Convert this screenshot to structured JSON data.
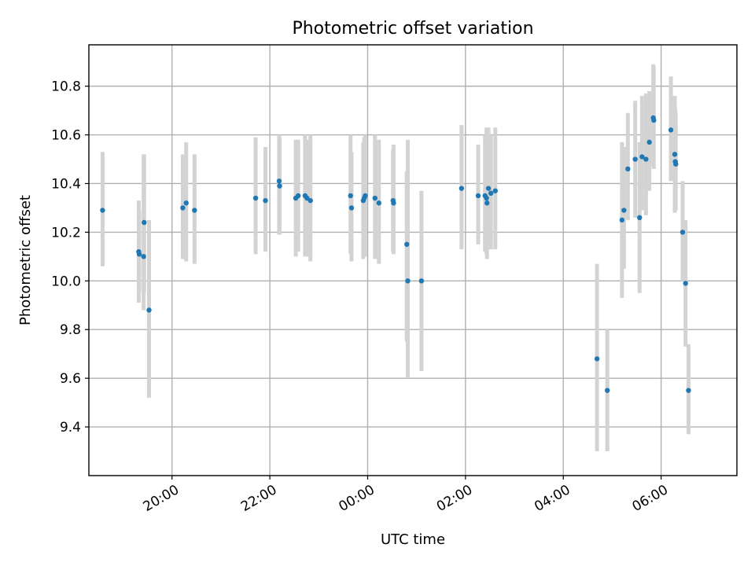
{
  "chart_data": {
    "type": "scatter",
    "title": "Photometric offset variation",
    "xlabel": "UTC time",
    "ylabel": "Photometric offset",
    "x_unit": "hours",
    "xlim": [
      18.3,
      31.55
    ],
    "ylim": [
      9.2,
      10.97
    ],
    "x_ticks": [
      {
        "value": 20,
        "label": "20:00"
      },
      {
        "value": 22,
        "label": "22:00"
      },
      {
        "value": 24,
        "label": "00:00"
      },
      {
        "value": 26,
        "label": "02:00"
      },
      {
        "value": 28,
        "label": "04:00"
      },
      {
        "value": 30,
        "label": "06:00"
      }
    ],
    "y_ticks": [
      9.4,
      9.6,
      9.8,
      10.0,
      10.2,
      10.4,
      10.6,
      10.8
    ],
    "grid": true,
    "marker_color": "#1f77b4",
    "errorbar_color": "#d3d3d3",
    "series": [
      {
        "x": [
          18.58,
          19.32,
          19.33,
          19.42,
          19.43,
          19.53,
          20.22,
          20.29,
          20.46,
          21.71,
          21.91,
          22.19,
          22.2,
          22.53,
          22.58,
          22.72,
          22.76,
          22.83,
          23.65,
          23.67,
          23.91,
          23.93,
          23.95,
          24.15,
          24.23,
          24.52,
          24.53,
          24.8,
          24.82,
          25.1,
          25.92,
          26.26,
          26.4,
          26.43,
          26.44,
          26.47,
          26.52,
          26.61,
          28.69,
          28.9,
          29.2,
          29.24,
          29.32,
          29.47,
          29.56,
          29.61,
          29.69,
          29.76,
          29.84,
          29.85,
          30.2,
          30.28,
          30.29,
          30.3,
          30.44,
          30.5,
          30.56
        ],
        "y": [
          10.29,
          10.12,
          10.11,
          10.1,
          10.24,
          9.88,
          10.3,
          10.32,
          10.29,
          10.34,
          10.33,
          10.41,
          10.39,
          10.34,
          10.35,
          10.35,
          10.34,
          10.33,
          10.35,
          10.3,
          10.33,
          10.34,
          10.35,
          10.34,
          10.32,
          10.33,
          10.32,
          10.15,
          10.0,
          10.0,
          10.38,
          10.35,
          10.35,
          10.34,
          10.32,
          10.38,
          10.36,
          10.37,
          9.68,
          9.55,
          10.25,
          10.29,
          10.46,
          10.5,
          10.26,
          10.51,
          10.5,
          10.57,
          10.67,
          10.66,
          10.62,
          10.52,
          10.49,
          10.48,
          10.2,
          9.99,
          9.55
        ],
        "yerr_low": [
          10.06,
          9.91,
          9.95,
          9.88,
          9.95,
          9.52,
          10.09,
          10.08,
          10.07,
          10.11,
          10.12,
          10.19,
          10.19,
          10.1,
          10.12,
          10.1,
          10.1,
          10.08,
          10.11,
          10.08,
          10.09,
          10.1,
          10.1,
          10.09,
          10.07,
          10.12,
          10.11,
          9.75,
          9.6,
          9.63,
          10.13,
          10.15,
          10.12,
          10.11,
          10.09,
          10.15,
          10.13,
          10.13,
          9.3,
          9.3,
          9.93,
          10.05,
          10.25,
          10.26,
          9.95,
          10.29,
          10.27,
          10.37,
          10.47,
          10.46,
          10.41,
          10.28,
          10.3,
          10.29,
          10.0,
          9.73,
          9.37
        ],
        "yerr_high": [
          10.53,
          10.33,
          10.29,
          10.52,
          10.52,
          10.25,
          10.52,
          10.57,
          10.52,
          10.59,
          10.55,
          10.6,
          10.59,
          10.58,
          10.58,
          10.6,
          10.58,
          10.6,
          10.6,
          10.53,
          10.57,
          10.59,
          10.6,
          10.6,
          10.58,
          10.54,
          10.56,
          10.45,
          10.58,
          10.37,
          10.64,
          10.56,
          10.6,
          10.63,
          10.6,
          10.63,
          10.6,
          10.63,
          10.07,
          9.8,
          10.57,
          10.55,
          10.69,
          10.74,
          10.57,
          10.76,
          10.77,
          10.78,
          10.89,
          10.88,
          10.84,
          10.76,
          10.71,
          10.69,
          10.41,
          10.25,
          9.74
        ]
      }
    ]
  }
}
